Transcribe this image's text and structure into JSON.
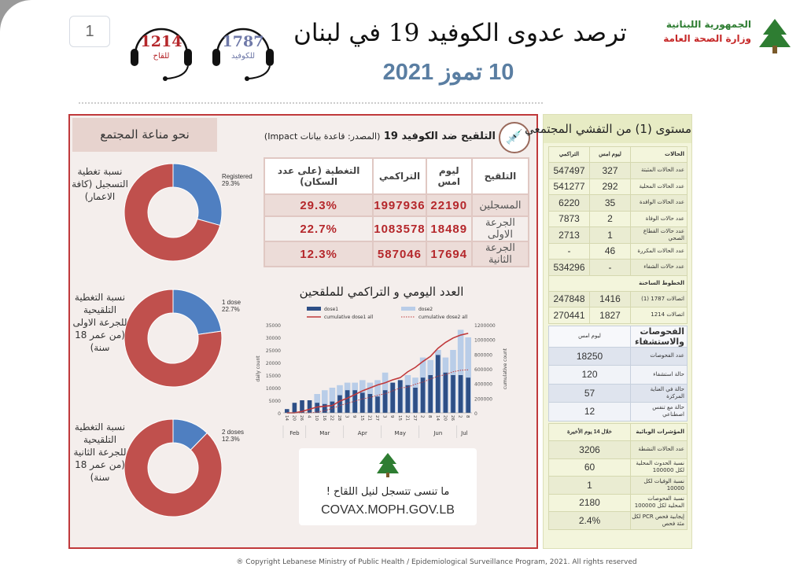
{
  "page_number": "1",
  "header": {
    "title": "ترصد عدوى الكوفيد 19 في لبنان",
    "date": "10 تموز 2021",
    "ministry_line1": "الجمهورية اللبنانية",
    "ministry_line2": "وزارة الصحة العامة",
    "hotlines": [
      {
        "number": "1787",
        "label": "للكوفيد",
        "color": "#6f79a8"
      },
      {
        "number": "1214",
        "label": "للقاح",
        "color": "#b5272b"
      }
    ]
  },
  "community": {
    "title": "نحو مناعة المجتمع",
    "donuts": [
      {
        "label": "نسبة تغطية التسجيل (كافة الاعمار)",
        "legend": "Registered",
        "percent_label": "29.3%",
        "percent": 29.3
      },
      {
        "label": "نسبة التغطية التلقيحية للجرعة الاولى (من عمر 18 سنة)",
        "legend": "1 dose",
        "percent_label": "22.7%",
        "percent": 22.7
      },
      {
        "label": "نسبة التغطية التلقيحية للجرعة الثانية (من عمر 18 سنة)",
        "legend": "2 doses",
        "percent_label": "12.3%",
        "percent": 12.3
      }
    ],
    "colors": {
      "filled": "#4f7fc1",
      "rest": "#c0504d"
    }
  },
  "vaccination": {
    "title": "التلقيح ضد الكوفيد 19",
    "source": "(المصدر: قاعدة بيانات Impact)",
    "headers": [
      "التلقيح",
      "ليوم امس",
      "التراكمي",
      "التغطية (على عدد السكان)"
    ],
    "rows": [
      [
        "المسجلين",
        "22190",
        "1997936",
        "29.3%"
      ],
      [
        "الجرعة الاولى",
        "18489",
        "1083578",
        "22.7%"
      ],
      [
        "الجرعة الثانية",
        "17694",
        "587046",
        "12.3%"
      ]
    ]
  },
  "chart_data": {
    "type": "bar",
    "title": "العدد اليومي و التراكمي للملقحين",
    "ylabel": "daily count",
    "y2label": "cumulative count",
    "ylim": [
      0,
      35000
    ],
    "y2lim": [
      0,
      1200000
    ],
    "yticks": [
      "0",
      "5000",
      "10000",
      "15000",
      "20000",
      "25000",
      "30000",
      "35000"
    ],
    "y2ticks": [
      "0",
      "200000",
      "400000",
      "600000",
      "800000",
      "1000000",
      "1200000"
    ],
    "x": [
      "14",
      "20",
      "26",
      "4",
      "10",
      "16",
      "22",
      "28",
      "3",
      "9",
      "15",
      "21",
      "27",
      "3",
      "9",
      "15",
      "21",
      "27",
      "2",
      "8",
      "14",
      "20",
      "26",
      "2",
      "8"
    ],
    "months": [
      "Feb",
      "Mar",
      "Apr",
      "May",
      "Jun",
      "Jul"
    ],
    "month_spans": [
      3,
      5,
      5,
      5,
      5,
      2
    ],
    "series": [
      {
        "name": "dose1",
        "kind": "bar",
        "color": "#2e4f86",
        "values": [
          1500,
          4000,
          5000,
          5000,
          4000,
          3500,
          4500,
          7000,
          9000,
          9000,
          8000,
          7500,
          6500,
          9000,
          12000,
          13000,
          11000,
          10000,
          14000,
          15000,
          23000,
          16000,
          15000,
          15000,
          14000
        ]
      },
      {
        "name": "dose2",
        "kind": "bar",
        "color": "#b9cde8",
        "values": [
          0,
          0,
          0,
          0,
          7500,
          9000,
          10000,
          11000,
          12000,
          12000,
          13000,
          12000,
          13000,
          16000,
          12000,
          13000,
          15000,
          14000,
          22000,
          21000,
          25000,
          22000,
          25000,
          33000,
          30000
        ]
      },
      {
        "name": "cumulative dose1 all",
        "kind": "line",
        "axis": "right",
        "color": "#c0393b",
        "values": [
          0,
          0,
          20000,
          50000,
          80000,
          90000,
          100000,
          160000,
          200000,
          250000,
          300000,
          340000,
          380000,
          410000,
          450000,
          480000,
          560000,
          620000,
          700000,
          770000,
          880000,
          960000,
          1020000,
          1060000,
          1083578
        ]
      },
      {
        "name": "cumulative dose2 all",
        "kind": "dotted-line",
        "axis": "right",
        "color": "#c0393b",
        "values": [
          0,
          0,
          0,
          0,
          10000,
          30000,
          60000,
          100000,
          130000,
          160000,
          190000,
          210000,
          240000,
          260000,
          300000,
          340000,
          350000,
          390000,
          420000,
          460000,
          500000,
          520000,
          560000,
          580000,
          587046
        ]
      }
    ]
  },
  "covax": {
    "text": "ما تنسى تتسجل لنيل اللقاح !",
    "url": "COVAX.MOPH.GOV.LB"
  },
  "community_spread": {
    "title": "مستوى (1) من التفشي المجتمعي",
    "cases": {
      "headers": [
        "الحالات",
        "ليوم امس",
        "التراكمي"
      ],
      "rows": [
        [
          "عدد الحالات المثبتة",
          "327",
          "547497"
        ],
        [
          "عدد الحالات المحلية",
          "292",
          "541277"
        ],
        [
          "عدد الحالات الوافدة",
          "35",
          "6220"
        ],
        [
          "عدد حالات الوفاة",
          "2",
          "7873"
        ],
        [
          "عدد حالات القطاع الصحي",
          "1",
          "2713"
        ],
        [
          "عدد الحالات المكررة",
          "46",
          "-"
        ],
        [
          "عدد حالات الشفاء",
          "-",
          "534296"
        ]
      ],
      "hotlines_header": "الخطوط الساخنة",
      "hotlines": [
        [
          "اتصالات 1787 (1)",
          "1416",
          "247848"
        ],
        [
          "اتصالات 1214",
          "1827",
          "270441"
        ]
      ]
    },
    "tests": {
      "headers": [
        "الفحوصات والاستشفاء",
        "ليوم امس"
      ],
      "rows": [
        [
          "عدد الفحوصات",
          "18250"
        ],
        [
          "حالة استشفاء",
          "120"
        ],
        [
          "حالة في العناية المركزة",
          "57"
        ],
        [
          "حالة مع تنفس اصطناعي",
          "12"
        ]
      ]
    },
    "indicators": {
      "headers": [
        "المؤشرات الوبائية",
        "خلال 14 يوم الأخيرة"
      ],
      "rows": [
        [
          "عدد الحالات النشطة",
          "3206"
        ],
        [
          "نسبة الحدوث المحلية لكل 100000",
          "60"
        ],
        [
          "نسبة الوفيات لكل 10000",
          "1"
        ],
        [
          "نسبة الفحوصات المحلية لكل 100000",
          "2180"
        ],
        [
          "إيجابية فحص PCR لكل مئة فحص",
          "2.4%"
        ]
      ]
    }
  },
  "copyright": "® Copyright Lebanese Ministry of Public Health / Epidemiological Surveillance Program, 2021. All rights reserved"
}
